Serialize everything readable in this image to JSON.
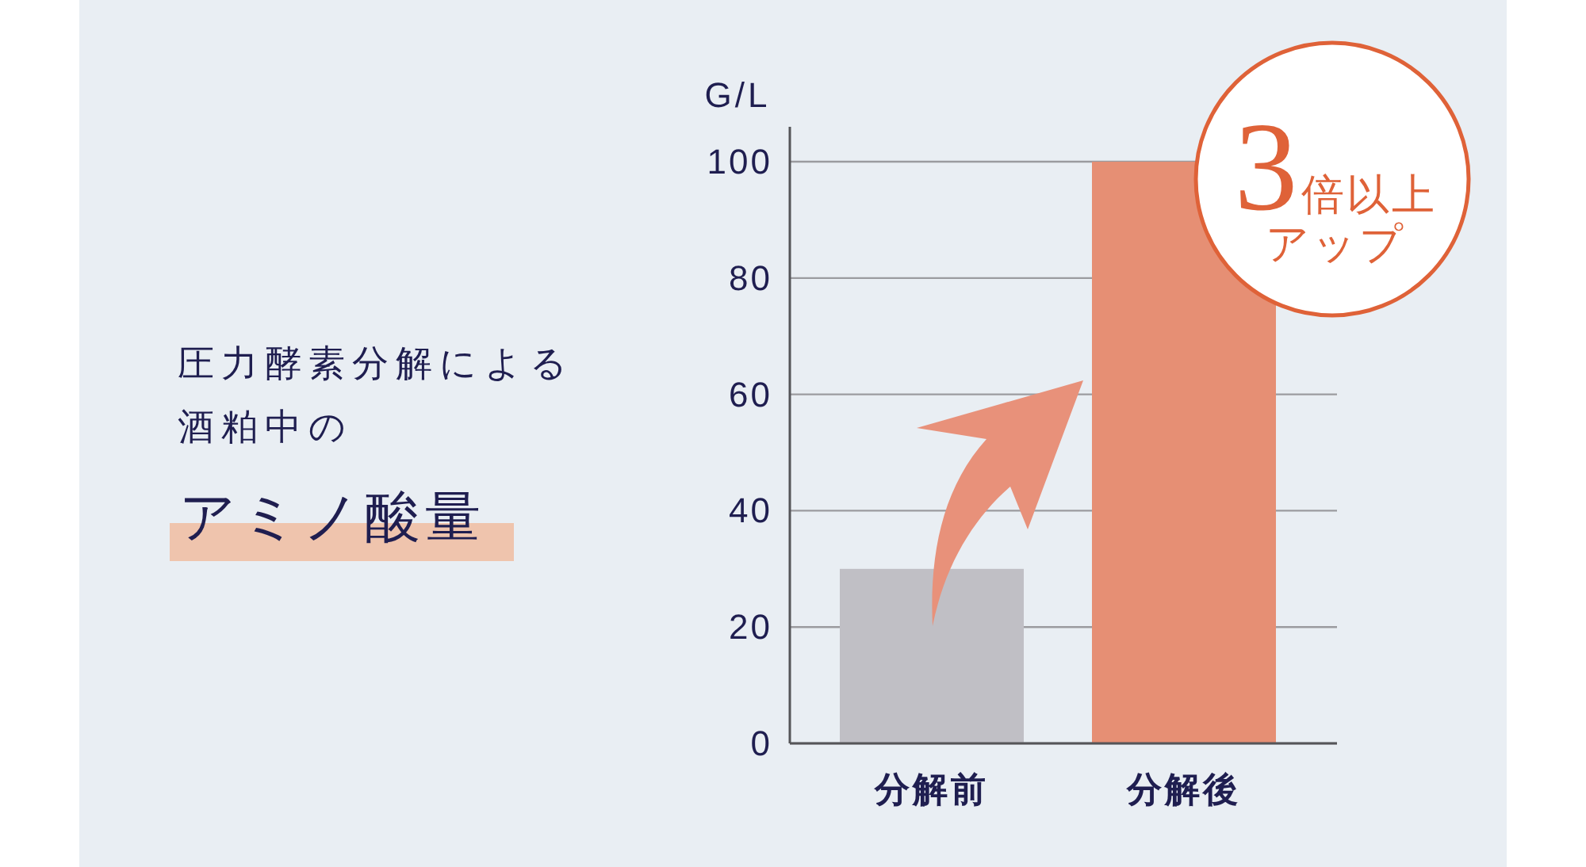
{
  "chart_data": {
    "type": "bar",
    "title": "圧力酵素分解による酒粕中の",
    "subtitle": "アミノ酸量",
    "ylabel": "G/L",
    "categories": [
      "分解前",
      "分解後"
    ],
    "values": [
      30,
      100
    ],
    "colors": [
      "#c0bfc5",
      "#e68f74"
    ],
    "ylim": [
      0,
      106
    ],
    "yticks": [
      0,
      20,
      40,
      60,
      80,
      100
    ],
    "grid": "y",
    "annotations": [
      "3倍以上アップ"
    ]
  }
}
